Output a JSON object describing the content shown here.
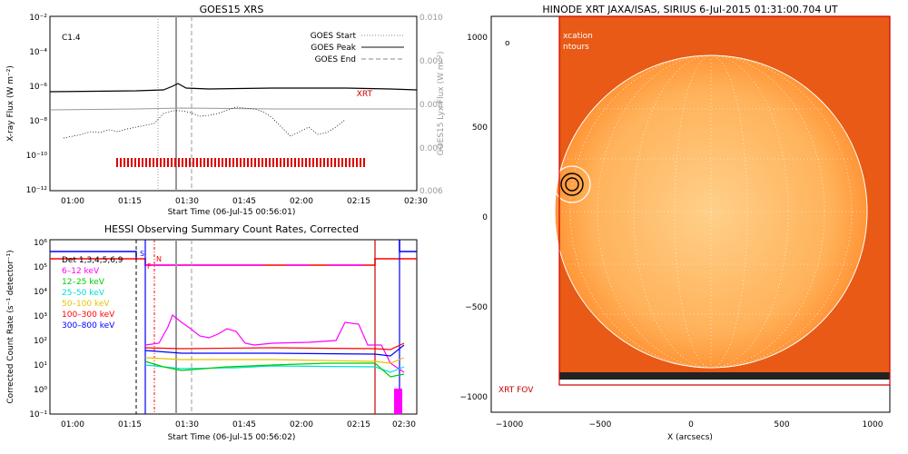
{
  "goes": {
    "title": "GOES15 XRS",
    "ylabel_left": "X-ray Flux (W m⁻²)",
    "ylabel_right": "GOES15 Lyx Flux (W m⁻²)",
    "xlabel": "Start Time (06-Jul-15 00:56:01)",
    "class_label": "C1.4",
    "xrt_label": "XRT",
    "legend": [
      "GOES Start",
      "GOES Peak",
      "GOES End"
    ],
    "left_ticks": [
      "10⁻²",
      "10⁻⁴",
      "10⁻⁶",
      "10⁻⁸",
      "10⁻¹⁰",
      "10⁻¹²"
    ],
    "right_ticks": [
      "0.010",
      "0.009",
      "0.008",
      "0.007",
      "0.006"
    ],
    "x_ticks": [
      "01:00",
      "01:15",
      "01:30",
      "01:45",
      "02:00",
      "02:15",
      "02:30"
    ]
  },
  "hessi": {
    "title": "HESSI Observing Summary Count Rates, Corrected",
    "ylabel": "Corrected Count Rate (s⁻¹ detector⁻¹)",
    "xlabel": "Start Time (06-Jul-15 00:56:02)",
    "y_ticks": [
      "10⁶",
      "10⁵",
      "10⁴",
      "10³",
      "10²",
      "10¹",
      "10⁰",
      "10⁻¹"
    ],
    "x_ticks": [
      "01:00",
      "01:15",
      "01:30",
      "01:45",
      "02:00",
      "02:15",
      "02:30"
    ],
    "detectors": "Det 1,3,4,5,6,9",
    "flags": [
      "S",
      "N",
      "F"
    ],
    "bands": [
      {
        "label": "6–12 keV",
        "color": "#ff00ff"
      },
      {
        "label": "12–25 keV",
        "color": "#00cc00"
      },
      {
        "label": "25–50 keV",
        "color": "#00dddd"
      },
      {
        "label": "50–100 keV",
        "color": "#e6c200"
      },
      {
        "label": "100–300 keV",
        "color": "#ff0000"
      },
      {
        "label": "300–800 keV",
        "color": "#0000ff"
      }
    ]
  },
  "xrt": {
    "title": "HINODE XRT JAXA/ISAS, SIRIUS  6-Jul-2015 01:31:00.704 UT",
    "xlabel": "X (arcsecs)",
    "x_ticks": [
      "−1000",
      "−500",
      "0",
      "500",
      "1000"
    ],
    "y_ticks": [
      "1000",
      "500",
      "0",
      "−500",
      "−1000"
    ],
    "fov_label": "XRT FOV",
    "top_text_1": "xcation",
    "top_text_2": "ntours",
    "small_mark": "o"
  },
  "chart_data": [
    {
      "type": "line",
      "title": "GOES15 XRS",
      "x": [
        "01:00",
        "01:15",
        "01:25",
        "01:30",
        "01:35",
        "01:45",
        "02:00",
        "02:15",
        "02:30"
      ],
      "series": [
        {
          "name": "XRT",
          "values": [
            3e-07,
            3e-07,
            3.5e-07,
            1.2e-06,
            5e-07,
            3.2e-07,
            3.5e-07,
            3.2e-07,
            3e-07
          ]
        },
        {
          "name": "GOES15 Lyx",
          "values": [
            0.0079,
            0.008,
            0.008,
            0.008,
            0.008,
            0.008,
            0.008,
            0.008,
            0.008
          ]
        }
      ],
      "ylim": [
        1e-12,
        0.01
      ],
      "y2lim": [
        0.006,
        0.01
      ],
      "log_scale": true,
      "class": "C1.4",
      "goes_start": "01:26",
      "goes_peak": "01:31",
      "goes_end": "01:35"
    },
    {
      "type": "line",
      "title": "HESSI Observing Summary Count Rates, Corrected",
      "x": [
        "01:23",
        "01:30",
        "01:35",
        "01:45",
        "02:00",
        "02:15",
        "02:25",
        "02:28"
      ],
      "series": [
        {
          "name": "6–12 keV",
          "values": [
            80,
            300,
            900,
            150,
            120,
            100,
            300,
            8
          ]
        },
        {
          "name": "12–25 keV",
          "values": [
            15,
            12,
            10,
            10,
            10,
            12,
            10,
            3
          ]
        },
        {
          "name": "25–50 keV",
          "values": [
            20,
            18,
            15,
            15,
            15,
            15,
            15,
            8
          ]
        },
        {
          "name": "50–100 keV",
          "values": [
            40,
            35,
            30,
            30,
            30,
            30,
            30,
            20
          ]
        },
        {
          "name": "100–300 keV",
          "values": [
            80,
            70,
            60,
            60,
            60,
            60,
            60,
            50
          ]
        },
        {
          "name": "300–800 keV",
          "values": [
            60,
            50,
            45,
            45,
            45,
            45,
            45,
            40
          ]
        }
      ],
      "ylim": [
        0.1,
        1000000
      ],
      "log_scale": true
    }
  ]
}
